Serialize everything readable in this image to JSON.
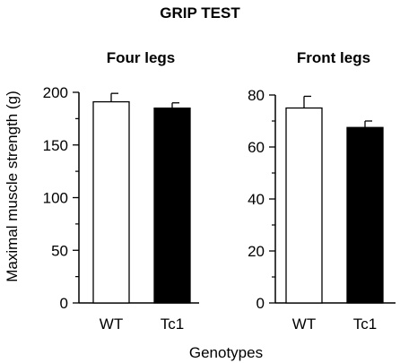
{
  "title": "GRIP TEST",
  "ylabel": "Maximal muscle strength (g)",
  "xlabel": "Genotypes",
  "colors": {
    "WT": "#ffffff",
    "Tc1": "#000000",
    "outline": "#000000"
  },
  "chart_data": [
    {
      "type": "bar",
      "title": "Four legs",
      "categories": [
        "WT",
        "Tc1"
      ],
      "values": [
        191,
        185
      ],
      "errors": [
        8,
        5
      ],
      "ylim": [
        0,
        200
      ],
      "yticks": [
        0,
        50,
        100,
        150,
        200
      ]
    },
    {
      "type": "bar",
      "title": "Front legs",
      "categories": [
        "WT",
        "Tc1"
      ],
      "values": [
        75,
        67.5
      ],
      "errors": [
        4.5,
        2.5
      ],
      "ylim": [
        0,
        80
      ],
      "yticks": [
        0,
        20,
        40,
        60,
        80
      ]
    }
  ]
}
